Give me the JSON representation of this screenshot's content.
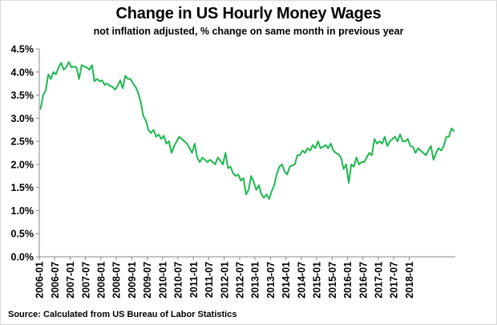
{
  "title": "Change in US Hourly Money Wages",
  "subtitle": "not inflation adjusted, % change on same month in previous year",
  "source": "Source: Calculated from US Bureau of Labor Statistics",
  "colors": {
    "line": "#1fb84f",
    "axis": "#888888",
    "text": "#000000"
  },
  "chart_data": {
    "type": "line",
    "title": "Change in US Hourly Money Wages",
    "subtitle": "not inflation adjusted, % change on same month in previous year",
    "xlabel": "",
    "ylabel": "",
    "ylim": [
      0,
      4.5
    ],
    "yticks": [
      0.0,
      0.5,
      1.0,
      1.5,
      2.0,
      2.5,
      3.0,
      3.5,
      4.0,
      4.5
    ],
    "ytick_labels": [
      "0.0%",
      "0.5%",
      "1.0%",
      "1.5%",
      "2.0%",
      "2.5%",
      "3.0%",
      "3.5%",
      "4.0%",
      "4.5%"
    ],
    "xtick_labels": [
      "2006-01",
      "2006-07",
      "2007-01",
      "2007-07",
      "2008-01",
      "2008-07",
      "2009-01",
      "2009-07",
      "2010-01",
      "2010-07",
      "2011-01",
      "2011-07",
      "2012-01",
      "2012-07",
      "2013-01",
      "2013-07",
      "2014-01",
      "2014-07",
      "2015-01",
      "2015-07",
      "2016-01",
      "2016-07",
      "2017-01",
      "2017-07",
      "2018-01"
    ],
    "grid": false,
    "legend": "none",
    "start": "2006-01",
    "series": [
      {
        "values": [
          3.2,
          3.5,
          3.6,
          3.95,
          3.85,
          4.0,
          3.95,
          4.1,
          4.2,
          4.05,
          4.1,
          4.22,
          4.1,
          4.12,
          4.1,
          3.85,
          4.15,
          4.12,
          4.1,
          4.05,
          4.15,
          3.8,
          3.85,
          3.8,
          3.82,
          3.72,
          3.75,
          3.7,
          3.68,
          3.62,
          3.7,
          3.82,
          3.65,
          3.92,
          3.85,
          3.85,
          3.75,
          3.68,
          3.55,
          3.35,
          3.05,
          2.95,
          2.75,
          2.68,
          2.75,
          2.6,
          2.65,
          2.55,
          2.62,
          2.45,
          2.5,
          2.25,
          2.4,
          2.5,
          2.6,
          2.55,
          2.5,
          2.45,
          2.35,
          2.25,
          2.45,
          2.15,
          2.05,
          2.15,
          2.1,
          2.05,
          2.1,
          2.05,
          2.0,
          2.15,
          2.08,
          2.0,
          2.25,
          1.92,
          1.95,
          1.8,
          1.75,
          1.78,
          1.65,
          1.7,
          1.35,
          1.45,
          1.75,
          1.62,
          1.45,
          1.55,
          1.35,
          1.28,
          1.35,
          1.25,
          1.42,
          1.55,
          1.8,
          1.95,
          2.0,
          1.85,
          1.78,
          1.95,
          1.98,
          2.0,
          2.2,
          2.2,
          2.3,
          2.25,
          2.35,
          2.3,
          2.42,
          2.35,
          2.5,
          2.35,
          2.38,
          2.42,
          2.35,
          2.45,
          2.3,
          2.25,
          2.22,
          2.15,
          1.9,
          2.0,
          1.6,
          2.0,
          1.95,
          2.15,
          2.0,
          2.05,
          2.05,
          2.15,
          2.25,
          2.2,
          2.55,
          2.45,
          2.5,
          2.45,
          2.6,
          2.4,
          2.5,
          2.55,
          2.6,
          2.5,
          2.65,
          2.5,
          2.5,
          2.55,
          2.4,
          2.38,
          2.25,
          2.35,
          2.3,
          2.25,
          2.2,
          2.3,
          2.4,
          2.1,
          2.25,
          2.35,
          2.3,
          2.4,
          2.6,
          2.6,
          2.78,
          2.72
        ]
      }
    ]
  }
}
